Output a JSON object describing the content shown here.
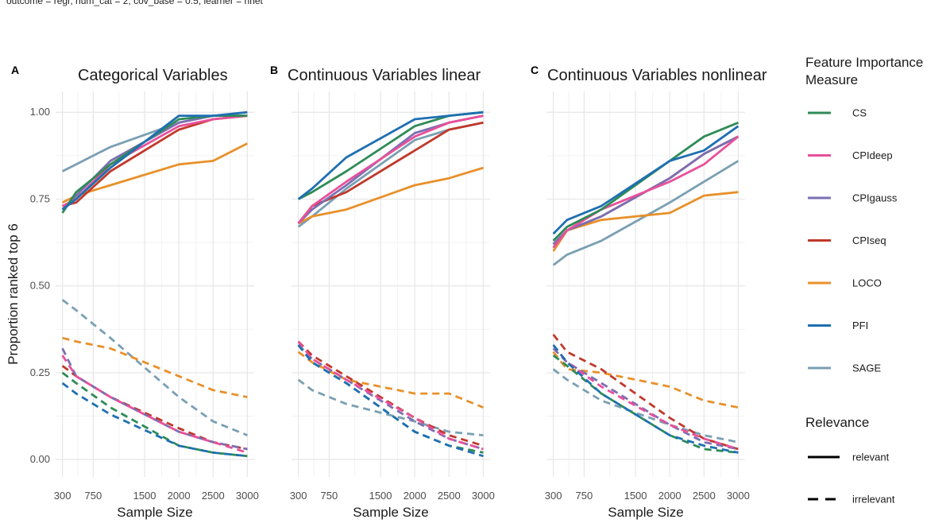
{
  "subtitle": "outcome = regr, num_cat = 2, cov_base = 0.5, learner = nnet",
  "chart_data": {
    "type": "line",
    "ylabel": "Proportion ranked top 6",
    "xlabel": "Sample Size",
    "x": [
      300,
      500,
      1000,
      2000,
      2500,
      3000
    ],
    "xticks": [
      300,
      750,
      1500,
      2000,
      2500,
      3000
    ],
    "xlim": [
      200,
      3100
    ],
    "yticks": [
      0.0,
      0.25,
      0.5,
      0.75,
      1.0
    ],
    "ytick_labels": [
      "0.00",
      "0.25",
      "0.50",
      "0.75",
      "1.00"
    ],
    "ylim": [
      -0.05,
      1.06
    ],
    "grid": true,
    "legend": {
      "measure_title_line1": "Feature Importance",
      "measure_title_line2": "Measure",
      "relevance_title": "Relevance",
      "relevance_items": [
        {
          "label": "relevant",
          "dash": "solid"
        },
        {
          "label": "irrelevant",
          "dash": "dashed"
        }
      ]
    },
    "measures": [
      {
        "name": "CS",
        "color": "#2e8b57"
      },
      {
        "name": "CPIdeep",
        "color": "#e8509a"
      },
      {
        "name": "CPIgauss",
        "color": "#7b6fb3"
      },
      {
        "name": "CPIseq",
        "color": "#c0392b"
      },
      {
        "name": "LOCO",
        "color": "#e8902a"
      },
      {
        "name": "PFI",
        "color": "#1f6fb2"
      },
      {
        "name": "SAGE",
        "color": "#7a9fb3"
      }
    ],
    "panels": [
      {
        "letter": "A",
        "title": "Categorical Variables",
        "series": {
          "CS": {
            "relevant": [
              0.71,
              0.77,
              0.85,
              0.98,
              0.99,
              0.99
            ],
            "irrelevant": [
              0.25,
              0.22,
              0.15,
              0.04,
              0.02,
              0.01
            ]
          },
          "CPIdeep": {
            "relevant": [
              0.73,
              0.75,
              0.85,
              0.96,
              0.98,
              0.99
            ],
            "irrelevant": [
              0.3,
              0.24,
              0.18,
              0.08,
              0.05,
              0.02
            ]
          },
          "CPIgauss": {
            "relevant": [
              0.72,
              0.76,
              0.86,
              0.97,
              0.99,
              0.99
            ],
            "irrelevant": [
              0.32,
              0.24,
              0.18,
              0.08,
              0.05,
              0.03
            ]
          },
          "CPIseq": {
            "relevant": [
              0.73,
              0.74,
              0.83,
              0.95,
              0.98,
              0.99
            ],
            "irrelevant": [
              0.27,
              0.24,
              0.18,
              0.09,
              0.05,
              0.03
            ]
          },
          "LOCO": {
            "relevant": [
              0.74,
              0.76,
              0.79,
              0.85,
              0.86,
              0.91
            ],
            "irrelevant": [
              0.35,
              0.34,
              0.32,
              0.24,
              0.2,
              0.18
            ]
          },
          "PFI": {
            "relevant": [
              0.72,
              0.75,
              0.84,
              0.99,
              0.99,
              1.0
            ],
            "irrelevant": [
              0.22,
              0.19,
              0.13,
              0.04,
              0.02,
              0.01
            ]
          },
          "SAGE": {
            "relevant": [
              0.83,
              0.85,
              0.9,
              0.97,
              0.99,
              0.99
            ],
            "irrelevant": [
              0.46,
              0.43,
              0.35,
              0.18,
              0.11,
              0.07
            ]
          }
        }
      },
      {
        "letter": "B",
        "title": "Continuous Variables linear",
        "series": {
          "CS": {
            "relevant": [
              0.75,
              0.77,
              0.83,
              0.96,
              0.99,
              1.0
            ],
            "irrelevant": [
              0.33,
              0.28,
              0.22,
              0.08,
              0.04,
              0.02
            ]
          },
          "CPIdeep": {
            "relevant": [
              0.68,
              0.73,
              0.8,
              0.93,
              0.97,
              0.99
            ],
            "irrelevant": [
              0.34,
              0.29,
              0.23,
              0.12,
              0.06,
              0.03
            ]
          },
          "CPIgauss": {
            "relevant": [
              0.68,
              0.72,
              0.79,
              0.94,
              0.97,
              0.99
            ],
            "irrelevant": [
              0.33,
              0.29,
              0.23,
              0.11,
              0.06,
              0.03
            ]
          },
          "CPIseq": {
            "relevant": [
              0.68,
              0.73,
              0.77,
              0.89,
              0.95,
              0.97
            ],
            "irrelevant": [
              0.34,
              0.3,
              0.24,
              0.12,
              0.07,
              0.04
            ]
          },
          "LOCO": {
            "relevant": [
              0.68,
              0.7,
              0.72,
              0.79,
              0.81,
              0.84
            ],
            "irrelevant": [
              0.31,
              0.28,
              0.23,
              0.19,
              0.19,
              0.15
            ]
          },
          "PFI": {
            "relevant": [
              0.75,
              0.78,
              0.87,
              0.98,
              0.99,
              1.0
            ],
            "irrelevant": [
              0.33,
              0.28,
              0.22,
              0.08,
              0.04,
              0.01
            ]
          },
          "SAGE": {
            "relevant": [
              0.67,
              0.7,
              0.78,
              0.92,
              0.95,
              0.97
            ],
            "irrelevant": [
              0.23,
              0.2,
              0.16,
              0.11,
              0.08,
              0.07
            ]
          }
        }
      },
      {
        "letter": "C",
        "title": "Continuous Variables nonlinear",
        "series": {
          "CS": {
            "relevant": [
              0.63,
              0.67,
              0.72,
              0.86,
              0.93,
              0.97
            ],
            "irrelevant": [
              0.3,
              0.27,
              0.19,
              0.07,
              0.03,
              0.02
            ]
          },
          "CPIdeep": {
            "relevant": [
              0.61,
              0.66,
              0.72,
              0.8,
              0.85,
              0.93
            ],
            "irrelevant": [
              0.33,
              0.28,
              0.21,
              0.1,
              0.06,
              0.03
            ]
          },
          "CPIgauss": {
            "relevant": [
              0.62,
              0.66,
              0.7,
              0.81,
              0.88,
              0.93
            ],
            "irrelevant": [
              0.32,
              0.28,
              0.22,
              0.1,
              0.05,
              0.03
            ]
          },
          "CPIseq": {
            "relevant": [
              0.62,
              0.66,
              0.7,
              0.81,
              0.88,
              0.93
            ],
            "irrelevant": [
              0.36,
              0.31,
              0.26,
              0.12,
              0.06,
              0.03
            ]
          },
          "LOCO": {
            "relevant": [
              0.6,
              0.66,
              0.69,
              0.71,
              0.76,
              0.77
            ],
            "irrelevant": [
              0.31,
              0.26,
              0.25,
              0.21,
              0.17,
              0.15
            ]
          },
          "PFI": {
            "relevant": [
              0.65,
              0.69,
              0.73,
              0.86,
              0.89,
              0.96
            ],
            "irrelevant": [
              0.33,
              0.28,
              0.19,
              0.07,
              0.04,
              0.02
            ]
          },
          "SAGE": {
            "relevant": [
              0.56,
              0.59,
              0.63,
              0.74,
              0.8,
              0.86
            ],
            "irrelevant": [
              0.26,
              0.23,
              0.17,
              0.1,
              0.07,
              0.05
            ]
          }
        }
      }
    ]
  }
}
